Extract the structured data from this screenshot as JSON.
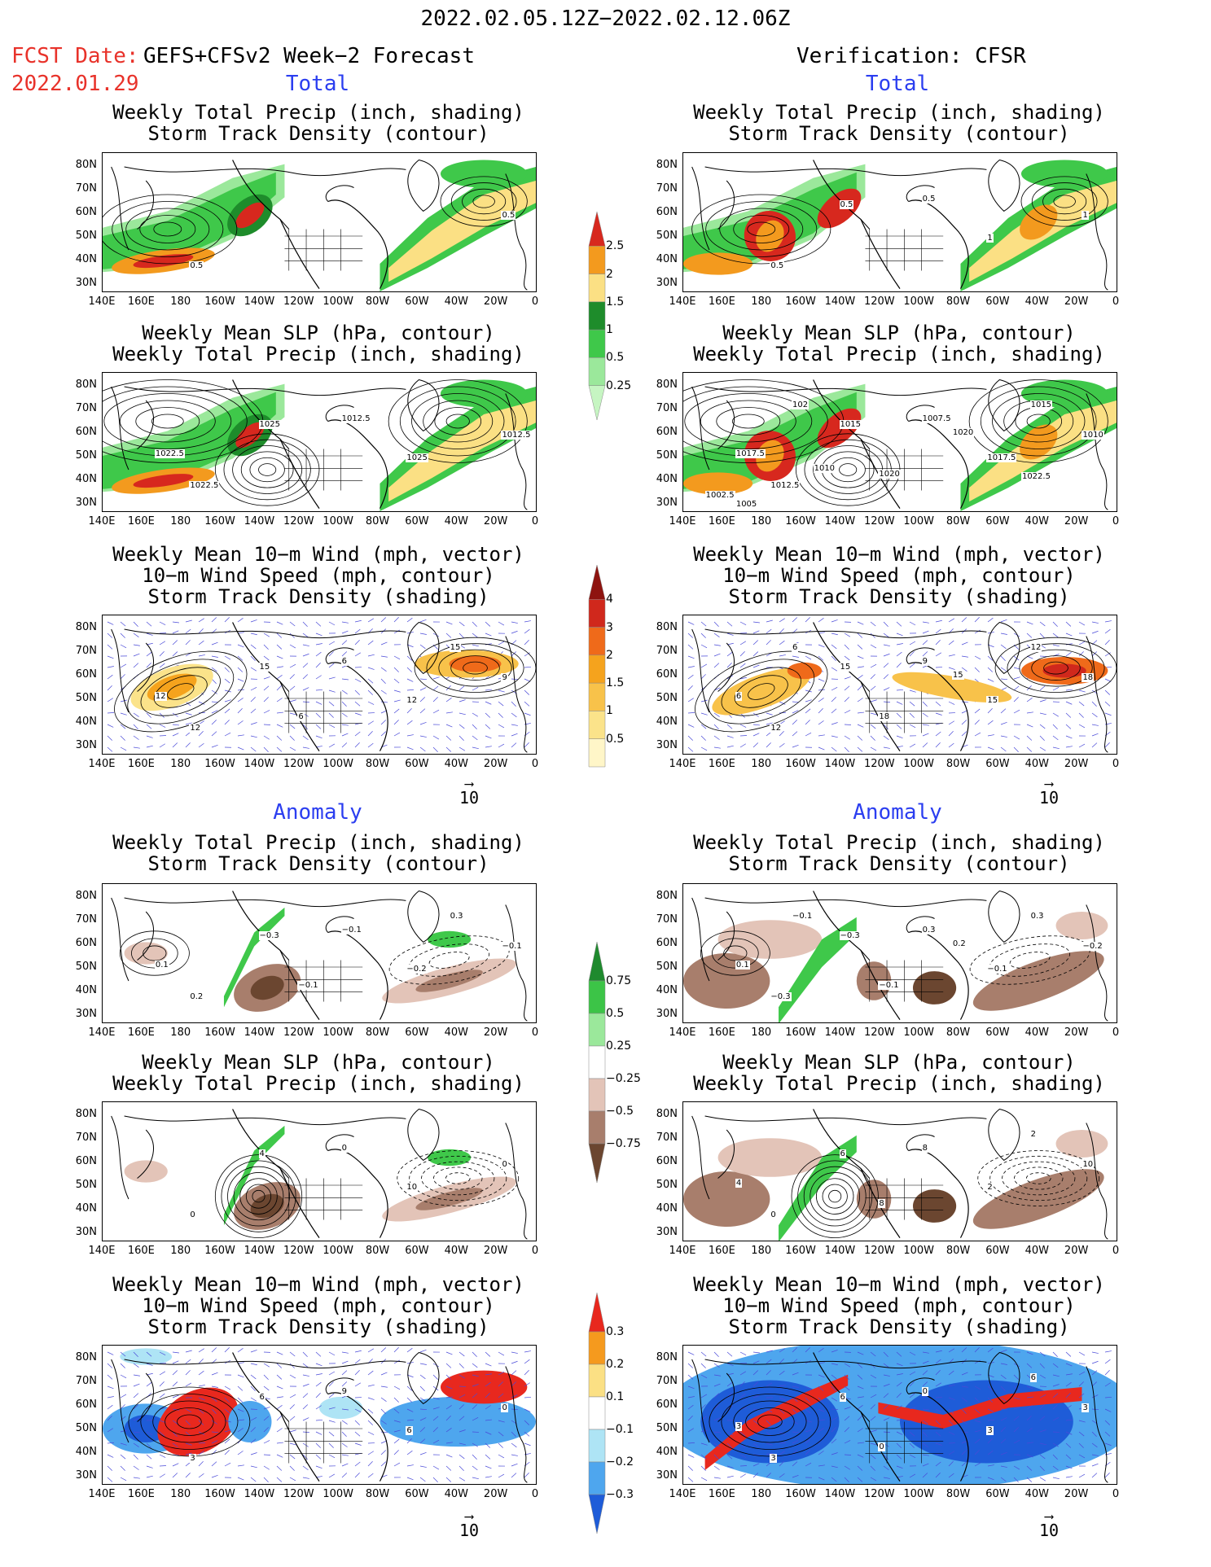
{
  "header": {
    "period": "2022.02.05.12Z−2022.02.12.06Z",
    "fcst_label": "FCST Date:",
    "fcst_model": "GEFS+CFSv2 Week−2 Forecast",
    "fcst_date": "2022.01.29",
    "verification": "Verification: CFSR"
  },
  "sections": {
    "total": "Total",
    "anomaly": "Anomaly"
  },
  "panel_titles": {
    "precip_storm": [
      "Weekly Total Precip (inch, shading)",
      "Storm Track Density (contour)"
    ],
    "slp_precip": [
      "Weekly Mean SLP (hPa, contour)",
      "Weekly Total Precip (inch, shading)"
    ],
    "wind_storm": [
      "Weekly Mean 10−m Wind (mph, vector)",
      "10−m Wind Speed (mph, contour)",
      "Storm Track Density (shading)"
    ]
  },
  "axes": {
    "lat_ticks": [
      "80N",
      "70N",
      "60N",
      "50N",
      "40N",
      "30N"
    ],
    "lon_ticks": [
      "140E",
      "160E",
      "180",
      "160W",
      "140W",
      "120W",
      "100W",
      "80W",
      "60W",
      "40W",
      "20W",
      "0"
    ]
  },
  "vector_ref": "10",
  "colorbars": {
    "total_precip": {
      "labels": [
        "2.5",
        "2",
        "1.5",
        "1",
        "0.5",
        "0.25"
      ],
      "colors": [
        "#d7281e",
        "#f39a1e",
        "#fbe084",
        "#1e8c2b",
        "#3fc84a",
        "#9be89b",
        "#c6f5c2"
      ]
    },
    "total_storm": {
      "labels": [
        "4",
        "3",
        "2",
        "1.5",
        "1",
        "0.5"
      ],
      "colors": [
        "#8e1410",
        "#d0281c",
        "#ef6a1a",
        "#f5a31d",
        "#f8c24a",
        "#fbe38a",
        "#fff6c8"
      ]
    },
    "anom_precip": {
      "labels": [
        "0.75",
        "0.5",
        "0.25",
        "−0.25",
        "−0.5",
        "−0.75"
      ],
      "colors": [
        "#1f8a2e",
        "#3cc447",
        "#9be89b",
        "#ffffff",
        "#e3c4b8",
        "#a87e6c",
        "#6b4630"
      ]
    },
    "anom_storm": {
      "labels": [
        "0.3",
        "0.2",
        "0.1",
        "−0.1",
        "−0.2",
        "−0.3"
      ],
      "colors": [
        "#e8281e",
        "#f59a1e",
        "#fbe084",
        "#ffffff",
        "#aee4f5",
        "#4ea6ee",
        "#1e5cd8"
      ]
    }
  },
  "annotations": {
    "l1": [
      "0.5",
      "0.5"
    ],
    "r1": [
      "0.5",
      "1",
      "0.5",
      "1",
      "0.5"
    ],
    "l2": [
      "1022.5",
      "1012.5",
      "1025",
      "1025",
      "1012.5",
      "1022.5"
    ],
    "r2": [
      "1012.5",
      "1010",
      "1015",
      "1017.5",
      "1007.5",
      "1017.5",
      "1015",
      "1020",
      "1020",
      "102",
      "1022.5",
      "1002.5",
      "1005",
      "1010"
    ],
    "l3": [
      "12",
      "9",
      "15",
      "12",
      "6",
      "12",
      "15",
      "6"
    ],
    "r3": [
      "12",
      "18",
      "15",
      "15",
      "9",
      "6",
      "12",
      "18",
      "15",
      "6"
    ],
    "l4": [
      "0.2",
      "−0.1",
      "−0.3",
      "−0.2",
      "−0.1",
      "0.1",
      "0.3",
      "−0.1"
    ],
    "r4": [
      "−0.3",
      "−0.2",
      "−0.3",
      "−0.1",
      "0.3",
      "0.1",
      "0.3",
      "−0.1",
      "0.2",
      "−0.1"
    ],
    "l5": [
      "0",
      "0",
      "4",
      "10",
      "0"
    ],
    "r5": [
      "0",
      "10",
      "6",
      "2",
      "8",
      "4",
      "2",
      "8"
    ],
    "l6": [
      "3",
      "0",
      "6",
      "6",
      "9"
    ],
    "r6": [
      "3",
      "3",
      "6",
      "3",
      "0",
      "3",
      "6",
      "0"
    ]
  }
}
